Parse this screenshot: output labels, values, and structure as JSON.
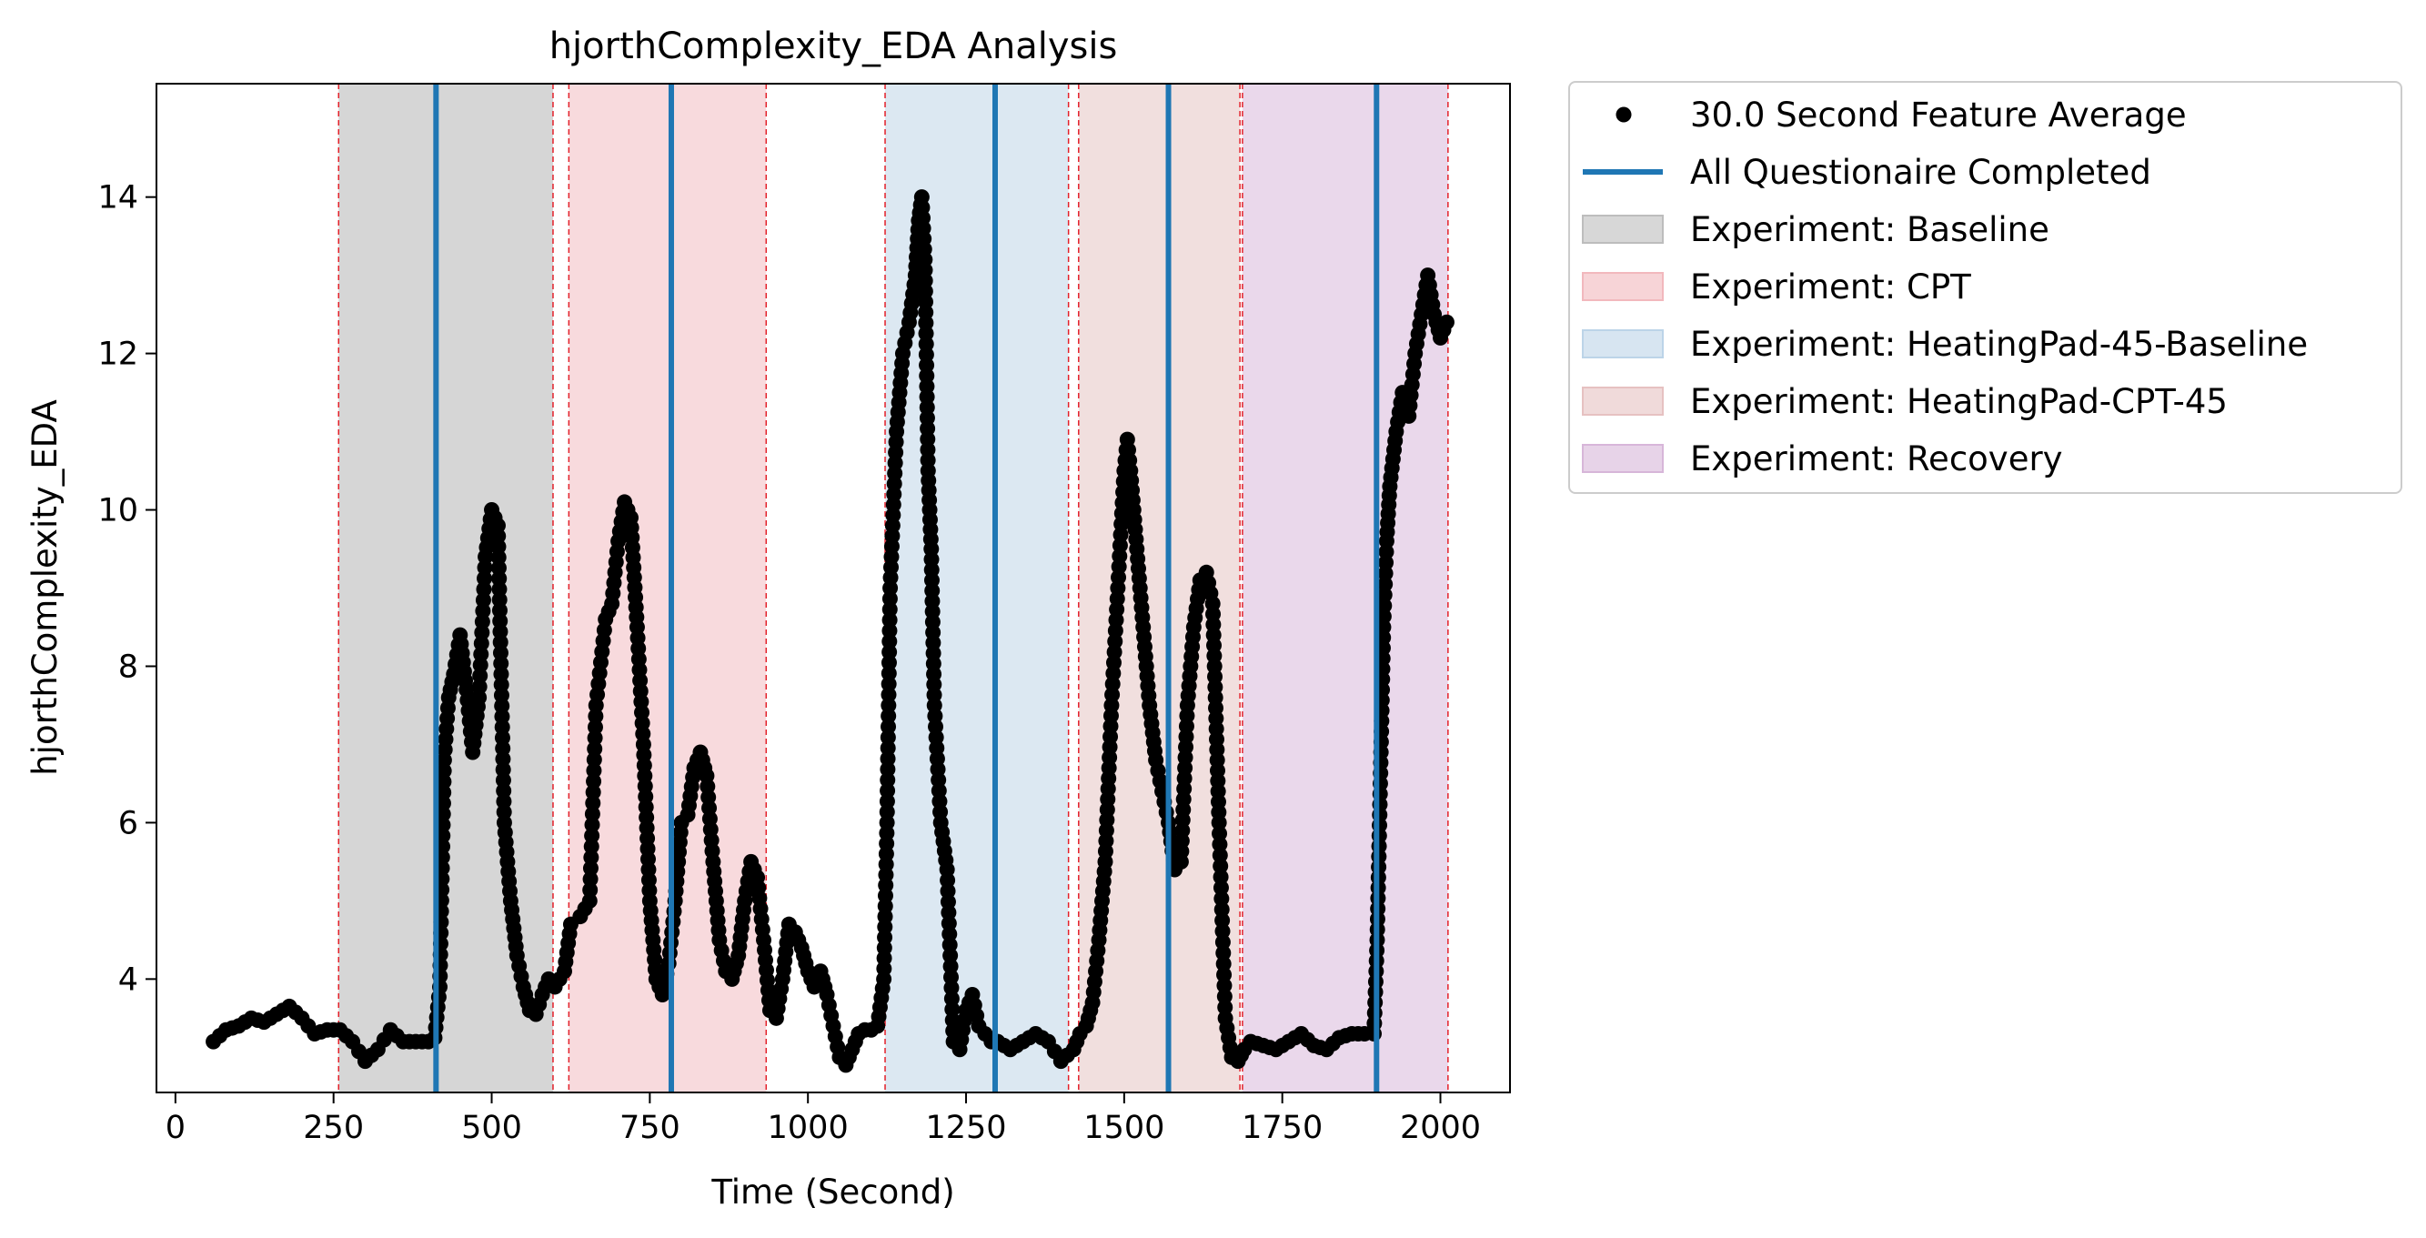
{
  "chart_data": {
    "type": "scatter",
    "title": "hjorthComplexity_EDA Analysis",
    "xlabel": "Time (Second)",
    "ylabel": "hjorthComplexity_EDA",
    "xlim": [
      -30,
      2110
    ],
    "ylim": [
      2.55,
      15.45
    ],
    "xticks": [
      0,
      250,
      500,
      750,
      1000,
      1250,
      1500,
      1750,
      2000
    ],
    "yticks": [
      4,
      6,
      8,
      10,
      12,
      14
    ],
    "grid": false,
    "legend_position": "outside-top-right",
    "legend": [
      {
        "label": "30.0 Second Feature Average",
        "kind": "marker",
        "color": "#000000"
      },
      {
        "label": "All Questionaire Completed",
        "kind": "line",
        "color": "#1f77b4"
      },
      {
        "label": "Experiment: Baseline",
        "kind": "patch",
        "color": "#bdbdbd"
      },
      {
        "label": "Experiment: CPT",
        "kind": "patch",
        "color": "#f2b8bd"
      },
      {
        "label": "Experiment: HeatingPad-45-Baseline",
        "kind": "patch",
        "color": "#bcd4e8"
      },
      {
        "label": "Experiment: HeatingPad-CPT-45",
        "kind": "patch",
        "color": "#e6c1c1"
      },
      {
        "label": "Experiment: Recovery",
        "kind": "patch",
        "color": "#d7b6d9"
      }
    ],
    "experiment_periods": [
      {
        "name": "Baseline",
        "start": 258,
        "end": 597,
        "color": "#d6d6d6"
      },
      {
        "name": "CPT",
        "start": 622,
        "end": 934,
        "color": "#f8dadd"
      },
      {
        "name": "HeatingPad-45-Baseline",
        "start": 1122,
        "end": 1412,
        "color": "#dce8f2"
      },
      {
        "name": "HeatingPad-CPT-45",
        "start": 1428,
        "end": 1683,
        "color": "#f1dfde"
      },
      {
        "name": "Recovery",
        "start": 1687,
        "end": 2012,
        "color": "#ead8eb"
      }
    ],
    "period_boundaries": [
      258,
      597,
      622,
      934,
      1122,
      1412,
      1428,
      1683,
      1687,
      2012
    ],
    "questionnaire_completed": [
      412,
      784,
      1296,
      1570,
      1899
    ],
    "series": [
      {
        "name": "30.0 Second Feature Average",
        "points": [
          [
            60,
            3.2
          ],
          [
            80,
            3.35
          ],
          [
            100,
            3.4
          ],
          [
            120,
            3.5
          ],
          [
            140,
            3.45
          ],
          [
            160,
            3.55
          ],
          [
            180,
            3.65
          ],
          [
            200,
            3.5
          ],
          [
            220,
            3.3
          ],
          [
            240,
            3.35
          ],
          [
            260,
            3.35
          ],
          [
            280,
            3.2
          ],
          [
            300,
            2.95
          ],
          [
            320,
            3.1
          ],
          [
            340,
            3.35
          ],
          [
            360,
            3.2
          ],
          [
            380,
            3.2
          ],
          [
            400,
            3.2
          ],
          [
            410,
            3.25
          ],
          [
            418,
            3.9
          ],
          [
            425,
            6.8
          ],
          [
            432,
            7.6
          ],
          [
            440,
            7.9
          ],
          [
            450,
            8.4
          ],
          [
            460,
            7.7
          ],
          [
            470,
            6.9
          ],
          [
            480,
            7.6
          ],
          [
            490,
            9.4
          ],
          [
            500,
            10.0
          ],
          [
            510,
            9.8
          ],
          [
            520,
            6.0
          ],
          [
            530,
            5.0
          ],
          [
            540,
            4.3
          ],
          [
            550,
            3.9
          ],
          [
            560,
            3.6
          ],
          [
            570,
            3.55
          ],
          [
            580,
            3.8
          ],
          [
            590,
            4.0
          ],
          [
            600,
            3.9
          ],
          [
            615,
            4.1
          ],
          [
            625,
            4.7
          ],
          [
            640,
            4.8
          ],
          [
            655,
            5.0
          ],
          [
            665,
            7.5
          ],
          [
            680,
            8.6
          ],
          [
            690,
            8.8
          ],
          [
            700,
            9.6
          ],
          [
            710,
            10.1
          ],
          [
            720,
            9.9
          ],
          [
            730,
            8.5
          ],
          [
            740,
            7.0
          ],
          [
            750,
            5.0
          ],
          [
            760,
            4.0
          ],
          [
            770,
            3.8
          ],
          [
            780,
            4.2
          ],
          [
            790,
            5.0
          ],
          [
            800,
            6.0
          ],
          [
            810,
            6.1
          ],
          [
            820,
            6.7
          ],
          [
            830,
            6.9
          ],
          [
            840,
            6.6
          ],
          [
            850,
            5.5
          ],
          [
            860,
            4.5
          ],
          [
            870,
            4.1
          ],
          [
            880,
            4.0
          ],
          [
            890,
            4.3
          ],
          [
            900,
            5.0
          ],
          [
            910,
            5.5
          ],
          [
            920,
            5.3
          ],
          [
            930,
            4.5
          ],
          [
            940,
            3.6
          ],
          [
            950,
            3.5
          ],
          [
            960,
            4.0
          ],
          [
            970,
            4.7
          ],
          [
            980,
            4.6
          ],
          [
            990,
            4.4
          ],
          [
            1000,
            4.1
          ],
          [
            1010,
            3.9
          ],
          [
            1020,
            4.1
          ],
          [
            1030,
            3.8
          ],
          [
            1040,
            3.4
          ],
          [
            1050,
            3.0
          ],
          [
            1060,
            2.9
          ],
          [
            1070,
            3.1
          ],
          [
            1080,
            3.3
          ],
          [
            1090,
            3.35
          ],
          [
            1100,
            3.35
          ],
          [
            1110,
            3.4
          ],
          [
            1120,
            4.0
          ],
          [
            1125,
            6.0
          ],
          [
            1130,
            9.0
          ],
          [
            1140,
            11.0
          ],
          [
            1150,
            12.0
          ],
          [
            1160,
            12.4
          ],
          [
            1170,
            13.0
          ],
          [
            1175,
            13.7
          ],
          [
            1180,
            14.0
          ],
          [
            1185,
            13.2
          ],
          [
            1190,
            10.5
          ],
          [
            1195,
            9.5
          ],
          [
            1200,
            7.5
          ],
          [
            1210,
            6.0
          ],
          [
            1220,
            5.4
          ],
          [
            1230,
            3.2
          ],
          [
            1240,
            3.1
          ],
          [
            1250,
            3.6
          ],
          [
            1260,
            3.8
          ],
          [
            1270,
            3.4
          ],
          [
            1280,
            3.3
          ],
          [
            1290,
            3.2
          ],
          [
            1300,
            3.2
          ],
          [
            1320,
            3.1
          ],
          [
            1340,
            3.2
          ],
          [
            1360,
            3.3
          ],
          [
            1380,
            3.2
          ],
          [
            1400,
            2.95
          ],
          [
            1420,
            3.1
          ],
          [
            1430,
            3.3
          ],
          [
            1440,
            3.4
          ],
          [
            1450,
            3.7
          ],
          [
            1460,
            4.5
          ],
          [
            1470,
            5.5
          ],
          [
            1480,
            7.5
          ],
          [
            1490,
            9.0
          ],
          [
            1500,
            10.5
          ],
          [
            1505,
            10.9
          ],
          [
            1510,
            10.5
          ],
          [
            1520,
            9.5
          ],
          [
            1530,
            8.5
          ],
          [
            1540,
            7.5
          ],
          [
            1550,
            6.8
          ],
          [
            1560,
            6.4
          ],
          [
            1570,
            6.0
          ],
          [
            1580,
            5.4
          ],
          [
            1590,
            5.5
          ],
          [
            1600,
            7.5
          ],
          [
            1610,
            8.5
          ],
          [
            1620,
            9.1
          ],
          [
            1630,
            9.2
          ],
          [
            1640,
            8.8
          ],
          [
            1650,
            6.0
          ],
          [
            1660,
            3.5
          ],
          [
            1670,
            3.0
          ],
          [
            1680,
            2.95
          ],
          [
            1690,
            3.1
          ],
          [
            1700,
            3.2
          ],
          [
            1720,
            3.15
          ],
          [
            1740,
            3.1
          ],
          [
            1760,
            3.2
          ],
          [
            1780,
            3.3
          ],
          [
            1800,
            3.15
          ],
          [
            1820,
            3.1
          ],
          [
            1840,
            3.25
          ],
          [
            1860,
            3.3
          ],
          [
            1880,
            3.3
          ],
          [
            1895,
            3.3
          ],
          [
            1900,
            4.5
          ],
          [
            1905,
            6.5
          ],
          [
            1910,
            8.5
          ],
          [
            1915,
            9.6
          ],
          [
            1920,
            10.3
          ],
          [
            1930,
            11.0
          ],
          [
            1940,
            11.5
          ],
          [
            1950,
            11.2
          ],
          [
            1960,
            12.0
          ],
          [
            1970,
            12.5
          ],
          [
            1980,
            13.0
          ],
          [
            1990,
            12.5
          ],
          [
            2000,
            12.2
          ],
          [
            2010,
            12.4
          ]
        ]
      }
    ]
  }
}
